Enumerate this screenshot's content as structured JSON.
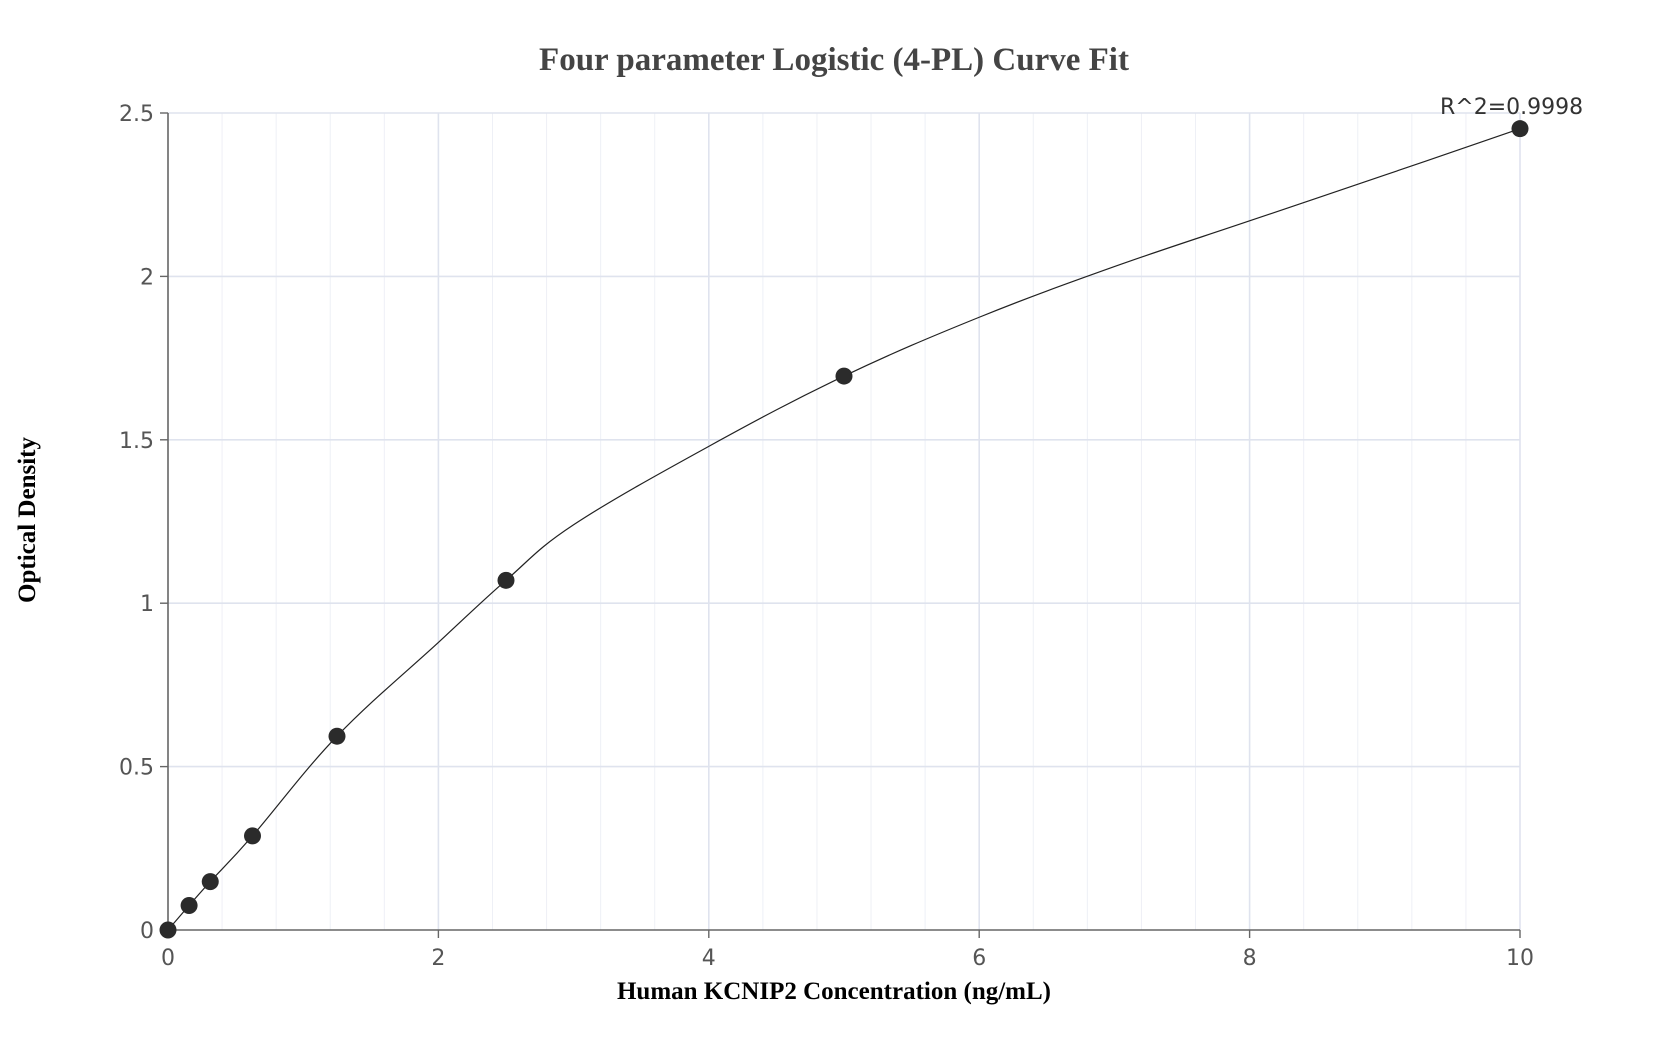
{
  "chart_data": {
    "type": "scatter",
    "title": "Four parameter Logistic (4-PL) Curve Fit",
    "xlabel": "Human KCNIP2 Concentration (ng/mL)",
    "ylabel": "Optical Density",
    "xlim": [
      0,
      10
    ],
    "ylim": [
      0,
      2.5
    ],
    "x_ticks": [
      0,
      2,
      4,
      6,
      8,
      10
    ],
    "x_tick_labels": [
      "0",
      "2",
      "4",
      "6",
      "8",
      "10"
    ],
    "y_ticks": [
      0,
      0.5,
      1,
      1.5,
      2,
      2.5
    ],
    "y_tick_labels": [
      "0",
      "0.5",
      "1",
      "1.5",
      "2",
      "2.5"
    ],
    "grid": true,
    "annotation": "R^2=0.9998",
    "series": [
      {
        "kind": "points",
        "x": [
          0,
          0.156,
          0.3125,
          0.625,
          1.25,
          2.5,
          5,
          10
        ],
        "y": [
          0,
          0.075,
          0.148,
          0.288,
          0.593,
          1.07,
          1.695,
          2.452
        ]
      },
      {
        "kind": "fitted-curve",
        "x": [
          0,
          0.156,
          0.3125,
          0.625,
          1.25,
          2,
          2.5,
          3,
          4,
          5,
          6,
          7,
          8,
          9,
          10
        ],
        "y": [
          0,
          0.075,
          0.148,
          0.288,
          0.593,
          0.88,
          1.07,
          1.24,
          1.48,
          1.695,
          1.875,
          2.03,
          2.17,
          2.31,
          2.452
        ]
      }
    ],
    "colors": {
      "points": "#2b2b2b",
      "curve": "#222222",
      "title": "#444444",
      "grid": "#dfe3ee"
    }
  }
}
